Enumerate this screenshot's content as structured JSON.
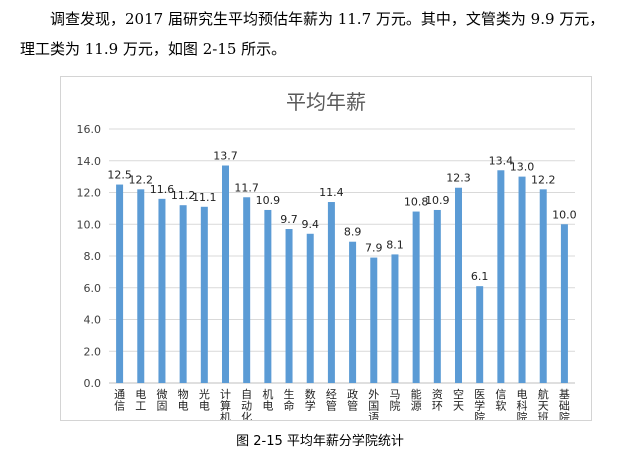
{
  "text": {
    "line1": "调查发现，2017 届研究生平均预估年薪为 11.7 万元。其中，文管类为 9.9 万元，",
    "line2": "理工类为 11.9 万元，如图 2-15 所示。"
  },
  "caption": "图 2-15    平均年薪分学院统计",
  "colors": {
    "bar": "#5b9bd5",
    "grid": "#d9d9d9",
    "axis": "#bfbfbf",
    "title": "#595959"
  },
  "chart_data": {
    "type": "bar",
    "title": "平均年薪",
    "xlabel": "",
    "ylabel": "",
    "ylim": [
      0,
      16
    ],
    "yticks": [
      "0.0",
      "2.0",
      "4.0",
      "6.0",
      "8.0",
      "10.0",
      "12.0",
      "14.0",
      "16.0"
    ],
    "grid": true,
    "legend": "none",
    "categories": [
      "通信",
      "电工",
      "微固",
      "物电",
      "光电",
      "计算机",
      "自动化",
      "机电",
      "生命",
      "数学",
      "经管",
      "政管",
      "外国语",
      "马院",
      "能源",
      "资环",
      "空天",
      "医学院",
      "信软",
      "电科院",
      "航天班",
      "基础院"
    ],
    "values": [
      12.5,
      12.2,
      11.6,
      11.2,
      11.1,
      13.7,
      11.7,
      10.9,
      9.7,
      9.4,
      11.4,
      8.9,
      7.9,
      8.1,
      10.8,
      10.9,
      12.3,
      6.1,
      13.4,
      13.0,
      12.2,
      10.0
    ],
    "labels": [
      "12.5",
      "12.2",
      "11.6",
      "11.2",
      "11.1",
      "13.7",
      "11.7",
      "10.9",
      "9.7",
      "9.4",
      "11.4",
      "8.9",
      "7.9",
      "8.1",
      "10.8",
      "10.9",
      "12.3",
      "6.1",
      "13.4",
      "13.0",
      "12.2",
      "10.0"
    ]
  }
}
